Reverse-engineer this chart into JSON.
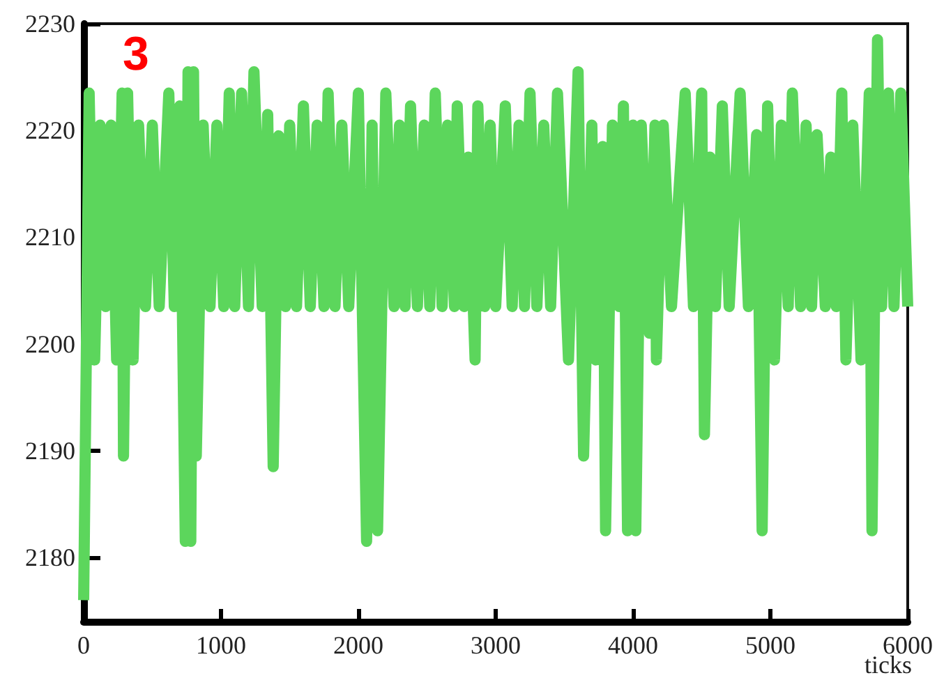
{
  "chart_data": {
    "type": "line",
    "xlabel": "ticks",
    "annotations": [
      "3"
    ],
    "xlim": [
      0,
      6000
    ],
    "xticks": [
      0,
      1000,
      2000,
      3000,
      4000,
      5000,
      6000
    ],
    "ylim": [
      2174,
      2230
    ],
    "yticks": [
      2180,
      2190,
      2200,
      2210,
      2220,
      2230
    ],
    "grid": false,
    "marker": "none",
    "line_style": "solid",
    "series": [
      {
        "color": "#5cd65c",
        "x": [
          0,
          40,
          80,
          120,
          160,
          200,
          240,
          280,
          290,
          320,
          360,
          400,
          450,
          500,
          550,
          620,
          660,
          700,
          740,
          760,
          780,
          800,
          820,
          870,
          920,
          970,
          1020,
          1060,
          1100,
          1150,
          1200,
          1240,
          1300,
          1340,
          1380,
          1420,
          1470,
          1500,
          1550,
          1600,
          1650,
          1700,
          1750,
          1780,
          1830,
          1880,
          1930,
          2000,
          2060,
          2100,
          2140,
          2200,
          2260,
          2300,
          2340,
          2380,
          2430,
          2480,
          2520,
          2560,
          2610,
          2650,
          2700,
          2720,
          2770,
          2800,
          2850,
          2870,
          2920,
          2960,
          3000,
          3070,
          3120,
          3170,
          3210,
          3250,
          3300,
          3350,
          3400,
          3450,
          3530,
          3600,
          3640,
          3700,
          3730,
          3780,
          3800,
          3850,
          3900,
          3930,
          3960,
          4000,
          4020,
          4060,
          4120,
          4160,
          4170,
          4220,
          4280,
          4380,
          4440,
          4500,
          4520,
          4560,
          4600,
          4650,
          4700,
          4780,
          4840,
          4900,
          4940,
          4980,
          5030,
          5080,
          5130,
          5160,
          5220,
          5260,
          5300,
          5340,
          5400,
          5440,
          5480,
          5520,
          5550,
          5600,
          5660,
          5720,
          5740,
          5780,
          5810,
          5860,
          5900,
          5950,
          6000
        ],
        "values": [
          2176,
          2223.5,
          2198.5,
          2220.5,
          2203.5,
          2220.5,
          2198.5,
          2223.5,
          2189.5,
          2223.5,
          2198.5,
          2220.5,
          2203.5,
          2220.5,
          2203.5,
          2223.5,
          2203.5,
          2222.3,
          2181.5,
          2225.5,
          2181.5,
          2225.5,
          2189.5,
          2220.5,
          2203.5,
          2220.5,
          2203.5,
          2223.5,
          2203.5,
          2223.5,
          2203.5,
          2225.5,
          2203.5,
          2221.5,
          2188.5,
          2219.5,
          2203.5,
          2220.5,
          2203.5,
          2222.3,
          2203.5,
          2220.5,
          2203.5,
          2223.5,
          2203.5,
          2220.5,
          2203.5,
          2223.5,
          2181.5,
          2220.5,
          2182.5,
          2223.5,
          2203.5,
          2220.5,
          2203.5,
          2222.3,
          2203.5,
          2220.5,
          2203.5,
          2223.5,
          2203.5,
          2220.5,
          2203.5,
          2222.3,
          2203.5,
          2217.5,
          2198.5,
          2222.3,
          2203.5,
          2220.5,
          2203.5,
          2222.3,
          2203.5,
          2220.5,
          2203.5,
          2223.5,
          2203.5,
          2220.5,
          2203.5,
          2223.5,
          2198.5,
          2225.5,
          2189.5,
          2220.5,
          2198.5,
          2218.5,
          2182.5,
          2220.5,
          2203.5,
          2222.3,
          2182.5,
          2220.5,
          2182.5,
          2220.5,
          2201,
          2220.5,
          2198.5,
          2220.5,
          2203.5,
          2223.5,
          2203.5,
          2223.5,
          2191.5,
          2217.5,
          2203.5,
          2222.3,
          2203.5,
          2223.5,
          2203.5,
          2219.6,
          2182.5,
          2222.3,
          2198.5,
          2220.5,
          2203.5,
          2223.5,
          2203.5,
          2220.5,
          2203.5,
          2219.6,
          2203.5,
          2217.5,
          2203.5,
          2223.5,
          2198.5,
          2220.5,
          2198.5,
          2223.5,
          2182.5,
          2228.5,
          2203.5,
          2223.5,
          2203.5,
          2223.5,
          2203.5
        ]
      }
    ]
  }
}
